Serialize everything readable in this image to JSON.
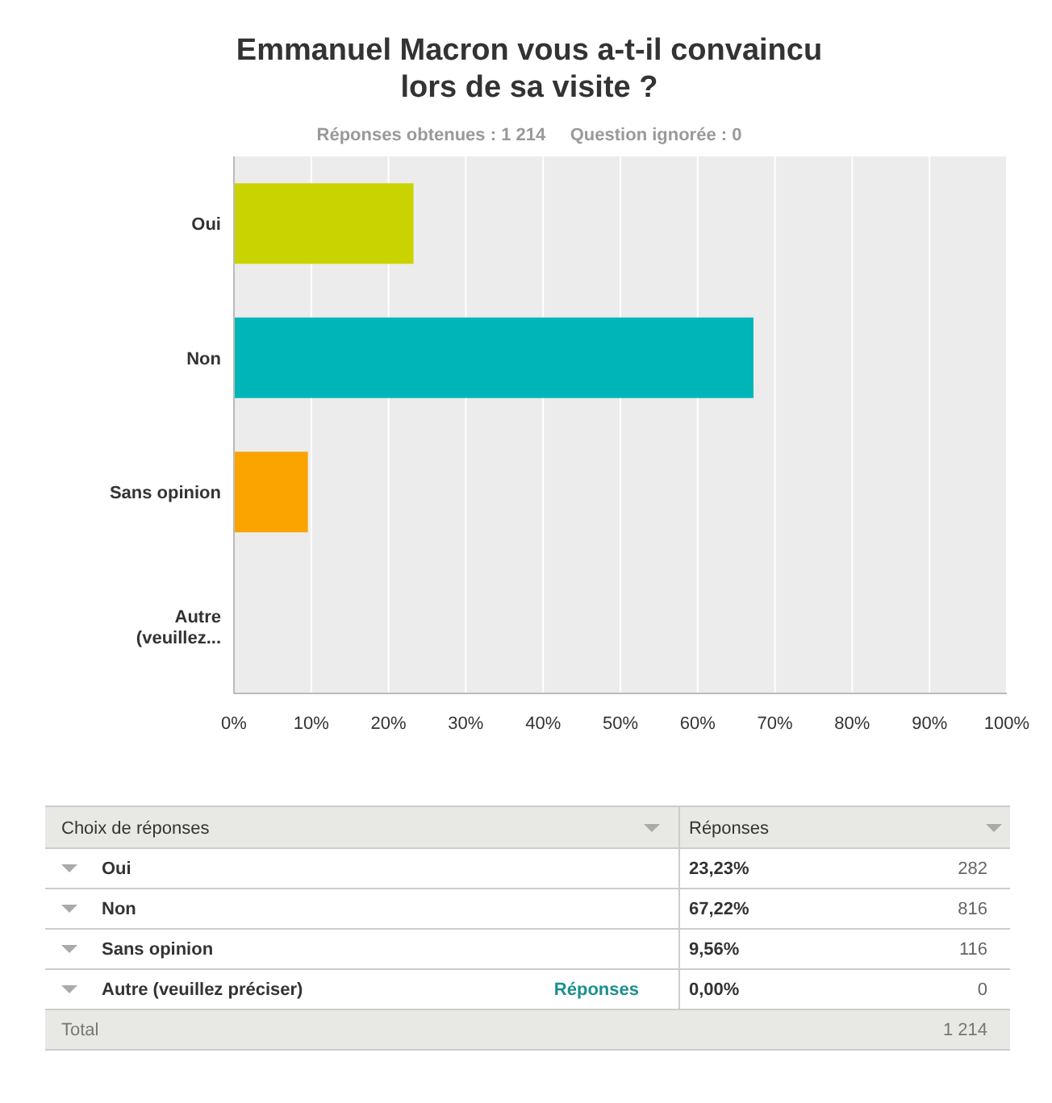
{
  "chart_data": {
    "type": "bar",
    "orientation": "horizontal",
    "title": "Emmanuel Macron vous a-t-il convaincu\nlors de sa visite ?",
    "subtitle": "Réponses obtenues : 1 214     Question ignorée : 0",
    "categories": [
      "Oui",
      "Non",
      "Sans opinion",
      "Autre (veuillez..."
    ],
    "values": [
      23.23,
      67.22,
      9.56,
      0
    ],
    "colors": [
      "#c9d300",
      "#00b5b8",
      "#fba400",
      "#7d6fb0"
    ],
    "xlim": [
      0,
      100
    ],
    "xticks": [
      {
        "value": 0,
        "label": "0%"
      },
      {
        "value": 10,
        "label": "10%"
      },
      {
        "value": 20,
        "label": "20%"
      },
      {
        "value": 30,
        "label": "30%"
      },
      {
        "value": 40,
        "label": "40%"
      },
      {
        "value": 50,
        "label": "50%"
      },
      {
        "value": 60,
        "label": "60%"
      },
      {
        "value": 70,
        "label": "70%"
      },
      {
        "value": 80,
        "label": "80%"
      },
      {
        "value": 90,
        "label": "90%"
      },
      {
        "value": 100,
        "label": "100%"
      }
    ],
    "grid": "x",
    "annotations": [
      "Choix de réponses",
      "Réponses",
      "Oui",
      "Non",
      "Sans opinion",
      "Autre (veuillez préciser)",
      "Réponses",
      "282",
      "816",
      "116",
      "0",
      "Total",
      "1 214",
      "23,23%",
      "67,22%",
      "9,56%",
      "0,00%"
    ]
  }
}
